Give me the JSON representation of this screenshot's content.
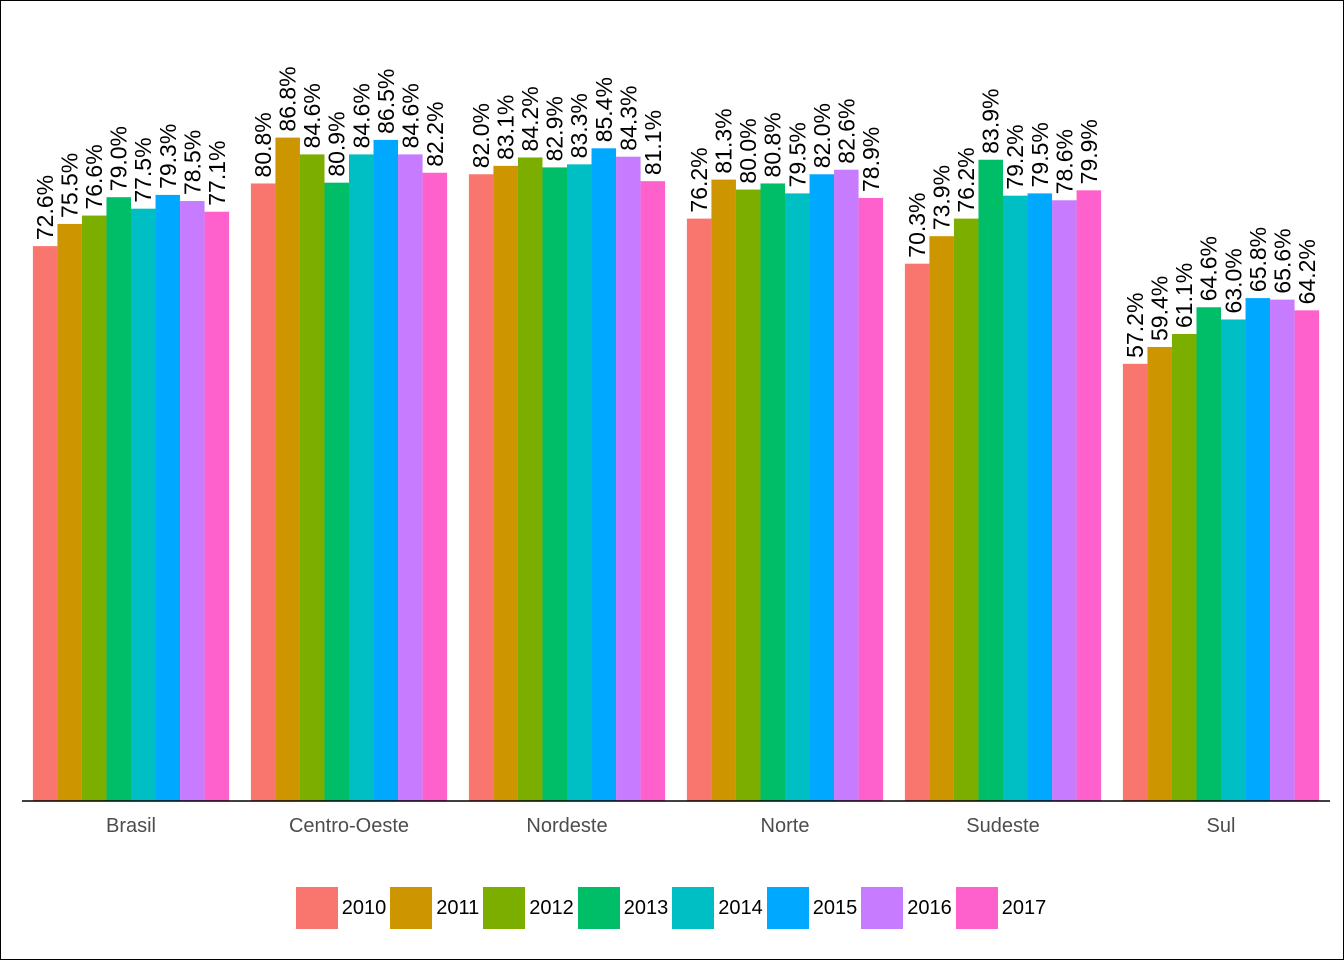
{
  "chart_data": {
    "type": "bar",
    "categories": [
      "Brasil",
      "Centro-Oeste",
      "Nordeste",
      "Norte",
      "Sudeste",
      "Sul"
    ],
    "series": [
      {
        "name": "2010",
        "color": "#F8766D",
        "values": [
          72.6,
          80.8,
          82.0,
          76.2,
          70.3,
          57.2
        ],
        "labels": [
          "72.6%",
          "80.8%",
          "82.0%",
          "76.2%",
          "70.3%",
          "57.2%"
        ]
      },
      {
        "name": "2011",
        "color": "#CD9600",
        "values": [
          75.5,
          86.8,
          83.1,
          81.3,
          73.9,
          59.4
        ],
        "labels": [
          "75.5%",
          "86.8%",
          "83.1%",
          "81.3%",
          "73.9%",
          "59.4%"
        ]
      },
      {
        "name": "2012",
        "color": "#7CAE00",
        "values": [
          76.6,
          84.6,
          84.2,
          80.0,
          76.2,
          61.1
        ],
        "labels": [
          "76.6%",
          "84.6%",
          "84.2%",
          "80.0%",
          "76.2%",
          "61.1%"
        ]
      },
      {
        "name": "2013",
        "color": "#00BE67",
        "values": [
          79.0,
          80.9,
          82.9,
          80.8,
          83.9,
          64.6
        ],
        "labels": [
          "79.0%",
          "80.9%",
          "82.9%",
          "80.8%",
          "83.9%",
          "64.6%"
        ]
      },
      {
        "name": "2014",
        "color": "#00BFC4",
        "values": [
          77.5,
          84.6,
          83.3,
          79.5,
          79.2,
          63.0
        ],
        "labels": [
          "77.5%",
          "84.6%",
          "83.3%",
          "79.5%",
          "79.2%",
          "63.0%"
        ]
      },
      {
        "name": "2015",
        "color": "#00A9FF",
        "values": [
          79.3,
          86.5,
          85.4,
          82.0,
          79.5,
          65.8
        ],
        "labels": [
          "79.3%",
          "86.5%",
          "85.4%",
          "82.0%",
          "79.5%",
          "65.8%"
        ]
      },
      {
        "name": "2016",
        "color": "#C77CFF",
        "values": [
          78.5,
          84.6,
          84.3,
          82.6,
          78.6,
          65.6
        ],
        "labels": [
          "78.5%",
          "84.6%",
          "84.3%",
          "82.6%",
          "78.6%",
          "65.6%"
        ]
      },
      {
        "name": "2017",
        "color": "#FF61CC",
        "values": [
          77.1,
          82.2,
          81.1,
          78.9,
          79.9,
          64.2
        ],
        "labels": [
          "77.1%",
          "82.2%",
          "81.1%",
          "78.9%",
          "79.9%",
          "64.2%"
        ]
      }
    ],
    "ylim": [
      0,
      100
    ],
    "grid": false,
    "legend_position": "bottom",
    "axis_line_color": "#000000"
  }
}
